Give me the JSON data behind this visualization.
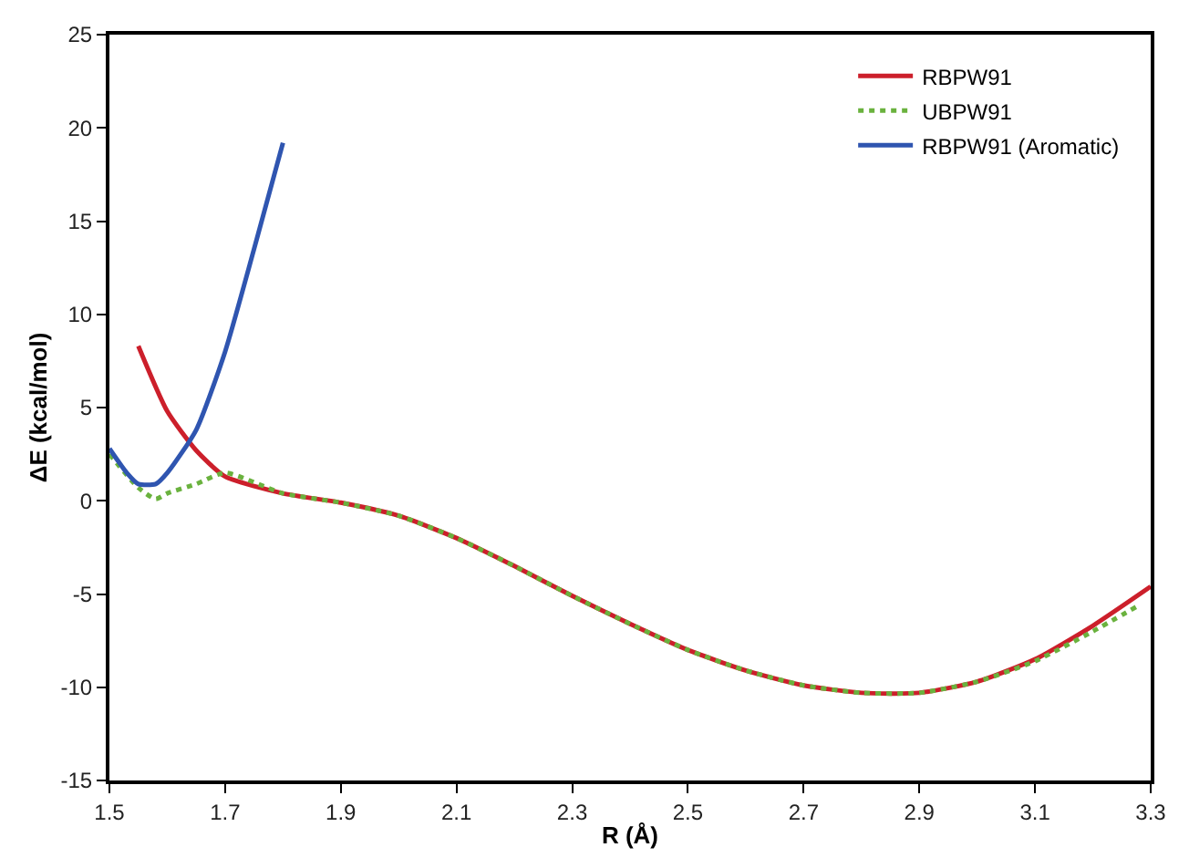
{
  "chart_data": {
    "type": "line",
    "xlabel": "R (Å)",
    "ylabel": "ΔE (kcal/mol)",
    "xlim": [
      1.5,
      3.3
    ],
    "xticks": [
      1.5,
      1.7,
      1.9,
      2.1,
      2.3,
      2.5,
      2.7,
      2.9,
      3.1,
      3.3
    ],
    "ylim": [
      -15,
      25
    ],
    "yticks": [
      -15,
      -10,
      -5,
      0,
      5,
      10,
      15,
      20,
      25
    ],
    "legend": "top right",
    "marker": "none",
    "series": [
      {
        "name": "RBPW91",
        "color": "#cc1f2b",
        "line_style": "solid",
        "x": [
          1.55,
          1.6,
          1.65,
          1.7,
          1.8,
          1.9,
          2.0,
          2.1,
          2.2,
          2.3,
          2.4,
          2.5,
          2.6,
          2.7,
          2.8,
          2.9,
          3.0,
          3.1,
          3.2,
          3.3
        ],
        "values": [
          8.3,
          4.8,
          2.7,
          1.3,
          0.4,
          -0.1,
          -0.8,
          -2.0,
          -3.5,
          -5.1,
          -6.6,
          -8.0,
          -9.1,
          -9.9,
          -10.3,
          -10.3,
          -9.7,
          -8.5,
          -6.7,
          -4.6
        ]
      },
      {
        "name": "UBPW91",
        "color": "#6ab23e",
        "line_style": "dotted",
        "x": [
          1.5,
          1.55,
          1.58,
          1.6,
          1.65,
          1.7,
          1.8,
          1.9,
          2.0,
          2.1,
          2.2,
          2.3,
          2.4,
          2.5,
          2.6,
          2.7,
          2.8,
          2.9,
          3.0,
          3.1,
          3.2,
          3.28
        ],
        "values": [
          2.5,
          0.7,
          0.1,
          0.4,
          0.9,
          1.5,
          0.4,
          -0.1,
          -0.8,
          -2.0,
          -3.5,
          -5.1,
          -6.6,
          -8.0,
          -9.1,
          -9.9,
          -10.3,
          -10.3,
          -9.7,
          -8.6,
          -7.0,
          -5.6
        ]
      },
      {
        "name": "RBPW91 (Aromatic)",
        "color": "#2f55b0",
        "line_style": "solid",
        "x": [
          1.5,
          1.53,
          1.55,
          1.58,
          1.6,
          1.65,
          1.7,
          1.75,
          1.8
        ],
        "values": [
          2.8,
          1.5,
          0.9,
          0.9,
          1.5,
          3.8,
          8.0,
          13.5,
          19.2
        ]
      }
    ]
  }
}
